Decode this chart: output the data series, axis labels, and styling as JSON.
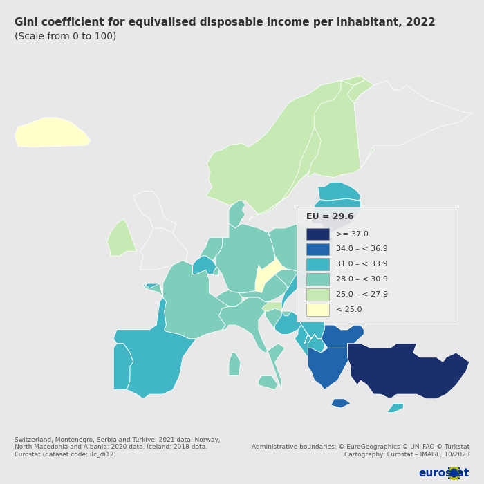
{
  "title": "Gini coefficient for equivalised disposable income per inhabitant, 2022",
  "subtitle": "(Scale from 0 to 100)",
  "eu_value": "EU = 29.6",
  "legend_labels": [
    ">= 37.0",
    "34.0 – < 36.9",
    "31.0 – < 33.9",
    "28.0 – < 30.9",
    "25.0 – < 27.9",
    "< 25.0"
  ],
  "legend_colors": [
    "#1a2f6b",
    "#2166ac",
    "#41b6c4",
    "#7fcdbb",
    "#c7e9b4",
    "#ffffcc"
  ],
  "background_color": "#d0d0d0",
  "ocean_color": "#d0d0d0",
  "country_border_color": "#ffffff",
  "no_data_color": "#e8e8e8",
  "footnote_left": "Switzerland, Montenegro, Serbia and Türkiye: 2021 data. Norway,\nNorth Macedonia and Albania: 2020 data. Iceland: 2018 data.\nEurostat (dataset code: ilc_di12)",
  "footnote_right": "Administrative boundaries: © EuroGeographics © UN–FAO © Turkstat\nCartography: Eurostat – IMAGE, 10/2023",
  "title_fontsize": 11,
  "subtitle_fontsize": 10,
  "legend_fontsize": 8,
  "eu_fontsize": 9
}
